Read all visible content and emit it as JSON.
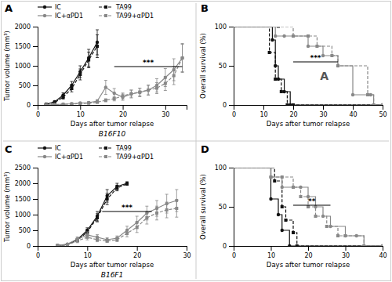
{
  "chart_data": [
    {
      "type": "line",
      "title": "A",
      "subtitle": "B16F10",
      "x_label": "Days after tumor relapse",
      "y_label": "Tumor volume (mm³)",
      "xlim": [
        0,
        35
      ],
      "ylim": [
        0,
        2000
      ],
      "xticks": [
        0,
        10,
        20,
        30
      ],
      "yticks": [
        0,
        500,
        1000,
        1500,
        2000
      ],
      "legend": "upper left",
      "series": [
        {
          "name": "IC",
          "color": "#111111",
          "line_style": "solid",
          "marker": "circle",
          "x": [
            2,
            4,
            6,
            8,
            10,
            12,
            14
          ],
          "values": [
            20,
            80,
            250,
            500,
            850,
            1200,
            1600
          ],
          "errors": [
            8,
            25,
            60,
            100,
            150,
            220,
            320
          ]
        },
        {
          "name": "TA99",
          "color": "#111111",
          "line_style": "dashed",
          "marker": "square",
          "x": [
            2,
            4,
            6,
            8,
            10,
            12,
            14
          ],
          "values": [
            15,
            60,
            200,
            420,
            780,
            1150,
            1500
          ],
          "errors": [
            6,
            20,
            50,
            85,
            140,
            200,
            290
          ]
        },
        {
          "name": "IC+αPD1",
          "color": "#888888",
          "line_style": "solid",
          "marker": "circle",
          "x": [
            2,
            4,
            6,
            8,
            10,
            12,
            14,
            16,
            18,
            20,
            22,
            24,
            26,
            28,
            30,
            32,
            34
          ],
          "values": [
            5,
            10,
            20,
            30,
            50,
            60,
            100,
            450,
            300,
            200,
            280,
            320,
            380,
            500,
            700,
            900,
            1200
          ],
          "errors": [
            3,
            5,
            8,
            12,
            18,
            25,
            35,
            180,
            120,
            80,
            100,
            110,
            130,
            170,
            230,
            280,
            350
          ]
        },
        {
          "name": "TA99+αPD1",
          "color": "#888888",
          "line_style": "dashed",
          "marker": "square",
          "x": [
            2,
            4,
            6,
            8,
            10,
            12,
            14,
            16,
            18,
            20,
            22,
            24,
            26,
            28,
            30,
            32,
            34
          ],
          "values": [
            3,
            8,
            15,
            25,
            35,
            45,
            70,
            120,
            160,
            230,
            290,
            330,
            380,
            430,
            550,
            750,
            1200
          ],
          "errors": [
            2,
            4,
            6,
            10,
            14,
            18,
            25,
            40,
            55,
            75,
            90,
            100,
            120,
            140,
            180,
            230,
            370
          ]
        }
      ],
      "annotations": [
        {
          "text": "***",
          "x": [
            18,
            34
          ],
          "y": 980
        }
      ]
    },
    {
      "type": "step",
      "title": "B",
      "x_label": "Days after tumor relapse",
      "y_label": "Overall survival (%)",
      "xlim": [
        0,
        50
      ],
      "ylim": [
        0,
        100
      ],
      "xticks": [
        0,
        10,
        20,
        30,
        40,
        50
      ],
      "yticks": [
        0,
        50,
        100
      ],
      "series": [
        {
          "name": "IC",
          "color": "#111111",
          "line_style": "solid",
          "marker": "circle",
          "x": [
            0,
            13,
            14,
            15,
            17,
            19,
            20,
            50
          ],
          "values": [
            100,
            83,
            50,
            33,
            17,
            0,
            0,
            0
          ]
        },
        {
          "name": "TA99",
          "color": "#111111",
          "line_style": "dashed",
          "marker": "square",
          "x": [
            0,
            12,
            14,
            16,
            18,
            20,
            50
          ],
          "values": [
            100,
            67,
            33,
            17,
            0,
            0,
            0
          ]
        },
        {
          "name": "IC+αPD1",
          "color": "#888888",
          "line_style": "solid",
          "marker": "circle",
          "x": [
            0,
            14,
            17,
            20,
            25,
            30,
            35,
            40,
            46,
            47,
            50
          ],
          "values": [
            100,
            88,
            88,
            88,
            75,
            63,
            50,
            13,
            13,
            0,
            0
          ]
        },
        {
          "name": "TA99+αPD1",
          "color": "#888888",
          "line_style": "dashed",
          "marker": "square",
          "x": [
            0,
            15,
            20,
            25,
            28,
            33,
            35,
            45,
            47,
            50
          ],
          "values": [
            100,
            100,
            88,
            88,
            75,
            63,
            50,
            13,
            0,
            0
          ]
        }
      ],
      "annotations": [
        {
          "text": "***",
          "x": [
            20,
            35
          ],
          "y": 55
        },
        {
          "text": "A"
        }
      ]
    },
    {
      "type": "line",
      "title": "C",
      "subtitle": "B16F1",
      "x_label": "Days after tumor relapse",
      "y_label": "Tumor volume (mm³)",
      "xlim": [
        0,
        30
      ],
      "ylim": [
        0,
        2500
      ],
      "xticks": [
        0,
        10,
        20,
        30
      ],
      "yticks": [
        0,
        500,
        1000,
        1500,
        2000,
        2500
      ],
      "legend": "upper left",
      "series": [
        {
          "name": "IC",
          "color": "#111111",
          "line_style": "solid",
          "marker": "circle",
          "x": [
            4,
            6,
            8,
            10,
            12,
            14,
            16,
            18
          ],
          "values": [
            10,
            50,
            200,
            500,
            950,
            1600,
            1900,
            2000
          ],
          "errors": [
            4,
            15,
            45,
            80,
            150,
            200,
            100,
            50
          ]
        },
        {
          "name": "TA99",
          "color": "#111111",
          "line_style": "dashed",
          "marker": "square",
          "x": [
            4,
            6,
            8,
            10,
            12,
            14,
            16,
            18
          ],
          "values": [
            8,
            40,
            180,
            450,
            900,
            1500,
            1850,
            1980
          ],
          "errors": [
            3,
            12,
            40,
            75,
            130,
            180,
            90,
            40
          ]
        },
        {
          "name": "IC+αPD1",
          "color": "#888888",
          "line_style": "solid",
          "marker": "circle",
          "x": [
            4,
            6,
            8,
            10,
            12,
            14,
            16,
            18,
            20,
            22,
            24,
            26,
            28
          ],
          "values": [
            15,
            60,
            220,
            350,
            280,
            200,
            250,
            500,
            750,
            1050,
            1200,
            1350,
            1450
          ],
          "errors": [
            6,
            20,
            70,
            100,
            80,
            60,
            70,
            130,
            200,
            220,
            250,
            300,
            350
          ]
        },
        {
          "name": "TA99+αPD1",
          "color": "#888888",
          "line_style": "dashed",
          "marker": "square",
          "x": [
            4,
            6,
            8,
            10,
            12,
            14,
            16,
            18,
            20,
            22,
            24,
            26,
            28
          ],
          "values": [
            10,
            40,
            160,
            280,
            200,
            160,
            200,
            400,
            600,
            900,
            1050,
            1150,
            1200
          ],
          "errors": [
            4,
            15,
            55,
            85,
            65,
            50,
            60,
            110,
            170,
            200,
            220,
            250,
            280
          ]
        }
      ],
      "annotations": [
        {
          "text": "***",
          "x": [
            13,
            23
          ],
          "y": 1100
        }
      ]
    },
    {
      "type": "step",
      "title": "D",
      "x_label": "Days after tumor relapse",
      "y_label": "Overall survival (%)",
      "xlim": [
        0,
        40
      ],
      "ylim": [
        0,
        100
      ],
      "xticks": [
        0,
        10,
        20,
        30,
        40
      ],
      "yticks": [
        0,
        50,
        100
      ],
      "series": [
        {
          "name": "IC",
          "color": "#111111",
          "line_style": "solid",
          "marker": "circle",
          "x": [
            0,
            10,
            12,
            13,
            15,
            40
          ],
          "values": [
            100,
            60,
            40,
            20,
            0,
            0
          ]
        },
        {
          "name": "TA99",
          "color": "#111111",
          "line_style": "dashed",
          "marker": "square",
          "x": [
            0,
            11,
            13,
            14,
            16,
            17,
            40
          ],
          "values": [
            100,
            83,
            50,
            33,
            17,
            0,
            0
          ]
        },
        {
          "name": "IC+αPD1",
          "color": "#888888",
          "line_style": "solid",
          "marker": "circle",
          "x": [
            0,
            10,
            13,
            16,
            18,
            20,
            22,
            24,
            26,
            30,
            33,
            35,
            40
          ],
          "values": [
            100,
            88,
            75,
            75,
            75,
            63,
            50,
            38,
            25,
            13,
            13,
            0,
            0
          ]
        },
        {
          "name": "TA99+αPD1",
          "color": "#888888",
          "line_style": "dashed",
          "marker": "square",
          "x": [
            0,
            10,
            13,
            16,
            18,
            20,
            22,
            25,
            28,
            30,
            35,
            40
          ],
          "values": [
            100,
            88,
            88,
            75,
            63,
            50,
            38,
            25,
            13,
            13,
            0,
            0
          ]
        }
      ],
      "annotations": [
        {
          "text": "**",
          "x": [
            16,
            26
          ],
          "y": 52
        }
      ]
    }
  ]
}
